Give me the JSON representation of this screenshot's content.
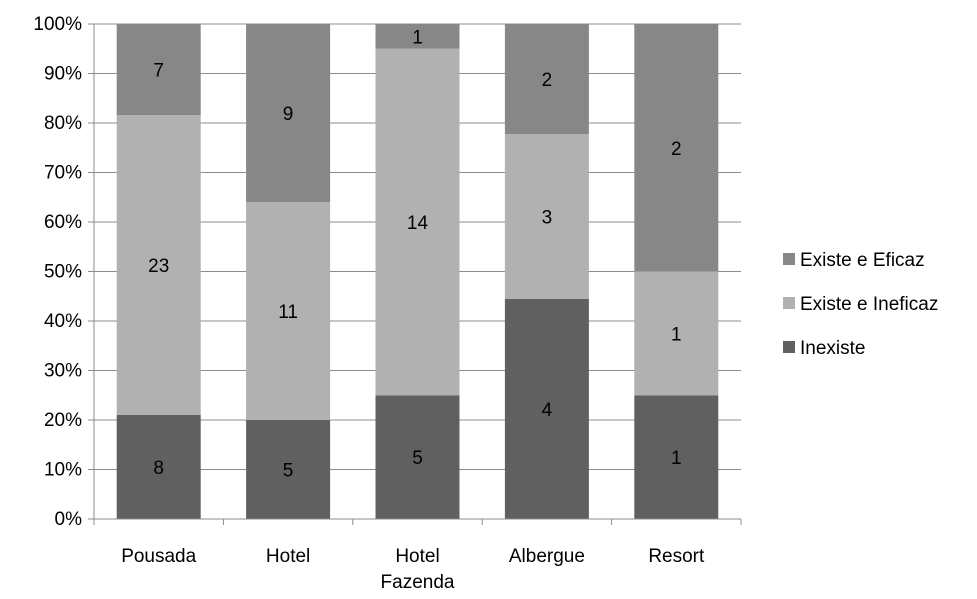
{
  "chart_data": {
    "type": "bar",
    "stacked": true,
    "normalized": true,
    "categories": [
      "Pousada",
      "Hotel",
      "Hotel\nFazenda",
      "Albergue",
      "Resort"
    ],
    "series": [
      {
        "name": "Inexiste",
        "values": [
          8,
          5,
          5,
          4,
          1
        ],
        "color": "#606060"
      },
      {
        "name": "Existe e Ineficaz",
        "values": [
          23,
          11,
          14,
          3,
          1
        ],
        "color": "#b1b1b1"
      },
      {
        "name": "Existe e Eficaz",
        "values": [
          7,
          9,
          1,
          2,
          2
        ],
        "color": "#878787"
      }
    ],
    "yticks": [
      "0%",
      "10%",
      "20%",
      "30%",
      "40%",
      "50%",
      "60%",
      "70%",
      "80%",
      "90%",
      "100%"
    ],
    "ylim": [
      0,
      100
    ],
    "grid": true,
    "legend_position": "right",
    "legend_order": [
      "Existe e Eficaz",
      "Existe e Ineficaz",
      "Inexiste"
    ],
    "title": "",
    "xlabel": "",
    "ylabel": ""
  }
}
